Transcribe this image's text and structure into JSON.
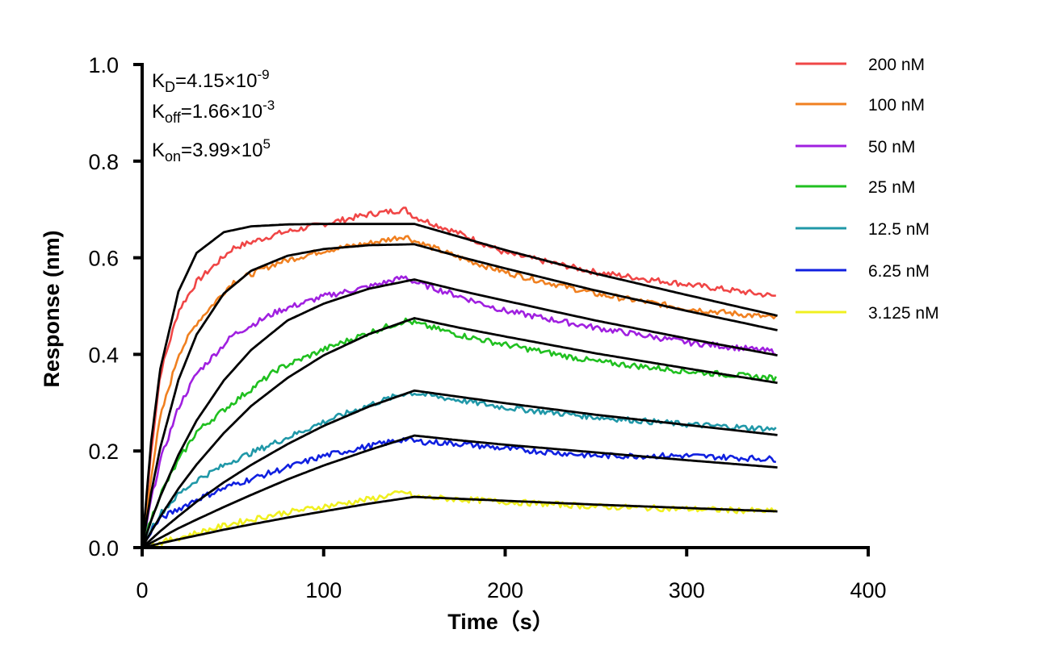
{
  "chart_data": {
    "type": "line",
    "xlabel": "Time（s）",
    "ylabel": "Response (nm)",
    "xlim": [
      0,
      400
    ],
    "ylim": [
      0,
      1.0
    ],
    "xticks": [
      "0",
      "100",
      "200",
      "300",
      "400"
    ],
    "yticks": [
      "0.0",
      "0.2",
      "0.4",
      "0.6",
      "0.8",
      "1.0"
    ],
    "grid": false,
    "legend_position": "top-right",
    "annotations": [
      {
        "base": "K",
        "sub": "D",
        "rest": "=4.15×10",
        "sup": "-9"
      },
      {
        "base": "K",
        "sub": "off",
        "rest": "=1.66×10",
        "sup": "-3"
      },
      {
        "base": "K",
        "sub": "on",
        "rest": "=3.99×10",
        "sup": "5"
      }
    ],
    "data_x": [
      0,
      5,
      10,
      20,
      30,
      50,
      75,
      100,
      125,
      145,
      150,
      175,
      200,
      250,
      300,
      350
    ],
    "fit_x": [
      0,
      5,
      10,
      20,
      30,
      45,
      60,
      80,
      100,
      125,
      150,
      175,
      200,
      250,
      300,
      350
    ],
    "fit_color": "#000000",
    "series": [
      {
        "name": "200 nM",
        "color": "#f04646",
        "values": [
          0,
          0.2,
          0.36,
          0.49,
          0.55,
          0.62,
          0.65,
          0.67,
          0.69,
          0.7,
          0.685,
          0.65,
          0.61,
          0.57,
          0.545,
          0.52
        ],
        "fit": [
          0,
          0.22,
          0.37,
          0.53,
          0.61,
          0.653,
          0.665,
          0.669,
          0.67,
          0.67,
          0.67,
          0.643,
          0.616,
          0.567,
          0.523,
          0.48
        ]
      },
      {
        "name": "100 nM",
        "color": "#f08020",
        "values": [
          0,
          0.15,
          0.27,
          0.4,
          0.465,
          0.55,
          0.59,
          0.615,
          0.63,
          0.645,
          0.635,
          0.6,
          0.57,
          0.525,
          0.495,
          0.475
        ],
        "fit": [
          0,
          0.114,
          0.207,
          0.347,
          0.441,
          0.526,
          0.573,
          0.604,
          0.618,
          0.626,
          0.628,
          0.602,
          0.578,
          0.532,
          0.49,
          0.45
        ]
      },
      {
        "name": "50 nM",
        "color": "#a020e0",
        "values": [
          0,
          0.1,
          0.18,
          0.29,
          0.36,
          0.44,
          0.49,
          0.52,
          0.54,
          0.56,
          0.55,
          0.52,
          0.49,
          0.455,
          0.425,
          0.405
        ],
        "fit": [
          0,
          0.056,
          0.106,
          0.192,
          0.263,
          0.346,
          0.409,
          0.47,
          0.505,
          0.536,
          0.555,
          0.532,
          0.511,
          0.47,
          0.433,
          0.398
        ]
      },
      {
        "name": "25 nM",
        "color": "#20c020",
        "values": [
          0,
          0.06,
          0.11,
          0.18,
          0.24,
          0.3,
          0.37,
          0.41,
          0.445,
          0.47,
          0.465,
          0.44,
          0.42,
          0.385,
          0.365,
          0.35
        ],
        "fit": [
          0,
          0.033,
          0.064,
          0.122,
          0.172,
          0.237,
          0.293,
          0.351,
          0.398,
          0.442,
          0.475,
          0.455,
          0.437,
          0.402,
          0.371,
          0.341
        ]
      },
      {
        "name": "12.5 nM",
        "color": "#2098a8",
        "values": [
          0,
          0.04,
          0.07,
          0.11,
          0.14,
          0.18,
          0.22,
          0.26,
          0.295,
          0.32,
          0.32,
          0.305,
          0.29,
          0.27,
          0.255,
          0.245
        ],
        "fit": [
          0,
          0.017,
          0.034,
          0.065,
          0.095,
          0.135,
          0.171,
          0.214,
          0.252,
          0.292,
          0.325,
          0.312,
          0.299,
          0.275,
          0.254,
          0.233
        ]
      },
      {
        "name": "6.25 nM",
        "color": "#1020e0",
        "values": [
          0,
          0.035,
          0.06,
          0.08,
          0.1,
          0.13,
          0.16,
          0.19,
          0.21,
          0.225,
          0.22,
          0.215,
          0.205,
          0.19,
          0.19,
          0.183
        ],
        "fit": [
          0,
          0.01,
          0.02,
          0.04,
          0.058,
          0.084,
          0.109,
          0.141,
          0.17,
          0.202,
          0.232,
          0.222,
          0.213,
          0.197,
          0.181,
          0.166
        ]
      },
      {
        "name": "3.125 nM",
        "color": "#f0f020",
        "values": [
          0,
          0.005,
          0.01,
          0.02,
          0.03,
          0.05,
          0.07,
          0.085,
          0.1,
          0.115,
          0.105,
          0.1,
          0.095,
          0.085,
          0.08,
          0.075
        ],
        "fit": [
          0,
          0.004,
          0.009,
          0.017,
          0.025,
          0.037,
          0.048,
          0.062,
          0.075,
          0.091,
          0.105,
          0.101,
          0.097,
          0.089,
          0.082,
          0.075
        ]
      }
    ]
  }
}
